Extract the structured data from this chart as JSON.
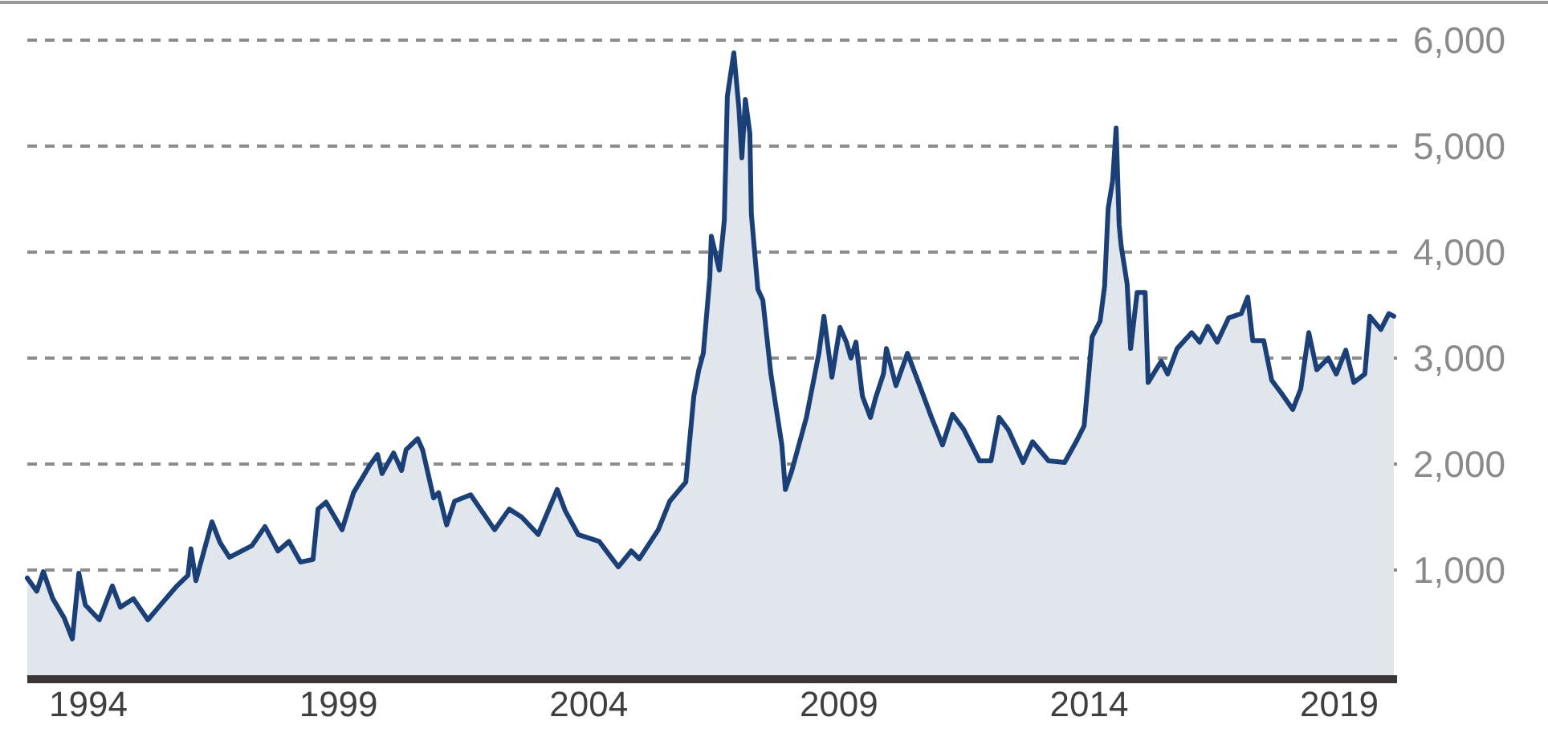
{
  "chart_data": {
    "type": "area",
    "color": "#1b4077",
    "x": [
      1992.78,
      1992.97,
      1993.1,
      1993.29,
      1993.52,
      1993.68,
      1993.81,
      1993.94,
      1994.22,
      1994.48,
      1994.64,
      1994.9,
      1995.19,
      1995.44,
      1995.77,
      1995.99,
      1996.05,
      1996.15,
      1996.34,
      1996.47,
      1996.63,
      1996.82,
      1997.27,
      1997.53,
      1997.79,
      1998.01,
      1998.24,
      1998.49,
      1998.59,
      1998.75,
      1999.07,
      1999.3,
      1999.62,
      1999.78,
      1999.87,
      2000.1,
      2000.26,
      2000.35,
      2000.58,
      2000.68,
      2000.9,
      2001.0,
      2001.16,
      2001.32,
      2001.64,
      2002.12,
      2002.41,
      2002.66,
      2002.99,
      2003.37,
      2003.53,
      2003.79,
      2004.21,
      2004.59,
      2004.85,
      2005.01,
      2005.39,
      2005.62,
      2005.94,
      2006.1,
      2006.2,
      2006.29,
      2006.42,
      2006.45,
      2006.61,
      2006.71,
      2006.77,
      2006.9,
      2007.0,
      2007.06,
      2007.13,
      2007.22,
      2007.25,
      2007.38,
      2007.48,
      2007.64,
      2007.86,
      2007.93,
      2008.06,
      2008.35,
      2008.6,
      2008.7,
      2008.86,
      2009.02,
      2009.15,
      2009.24,
      2009.34,
      2009.47,
      2009.63,
      2009.73,
      2009.89,
      2009.95,
      2010.14,
      2010.37,
      2010.59,
      2010.85,
      2011.07,
      2011.27,
      2011.49,
      2011.81,
      2012.04,
      2012.2,
      2012.39,
      2012.68,
      2012.87,
      2013.19,
      2013.51,
      2013.74,
      2013.9,
      2014.06,
      2014.22,
      2014.31,
      2014.38,
      2014.47,
      2014.54,
      2014.6,
      2014.64,
      2014.76,
      2014.83,
      2014.96,
      2015.12,
      2015.18,
      2015.44,
      2015.57,
      2015.76,
      2016.05,
      2016.21,
      2016.37,
      2016.56,
      2016.79,
      2017.04,
      2017.17,
      2017.27,
      2017.49,
      2017.65,
      2017.84,
      2018.07,
      2018.23,
      2018.39,
      2018.55,
      2018.78,
      2018.94,
      2019.13,
      2019.29,
      2019.51,
      2019.61,
      2019.83,
      2019.99,
      2020.09
    ],
    "values": [
      925,
      800,
      985,
      730,
      545,
      350,
      970,
      670,
      530,
      850,
      650,
      730,
      530,
      670,
      850,
      950,
      1200,
      900,
      1230,
      1455,
      1260,
      1120,
      1230,
      1410,
      1180,
      1270,
      1075,
      1100,
      1575,
      1640,
      1380,
      1730,
      1985,
      2090,
      1910,
      2105,
      1940,
      2135,
      2240,
      2135,
      1680,
      1730,
      1425,
      1650,
      1710,
      1380,
      1575,
      1500,
      1335,
      1760,
      1560,
      1335,
      1270,
      1030,
      1180,
      1105,
      1380,
      1650,
      1830,
      2640,
      2890,
      3045,
      3760,
      4150,
      3830,
      4300,
      5470,
      5880,
      5365,
      4890,
      5440,
      5120,
      4360,
      3650,
      3545,
      2850,
      2180,
      1760,
      1940,
      2440,
      3045,
      3395,
      2820,
      3290,
      3150,
      3000,
      3150,
      2640,
      2440,
      2620,
      2850,
      3090,
      2740,
      3045,
      2770,
      2440,
      2180,
      2470,
      2330,
      2030,
      2030,
      2440,
      2320,
      2015,
      2210,
      2030,
      2015,
      2210,
      2360,
      3200,
      3350,
      3680,
      4410,
      4670,
      5170,
      4260,
      4060,
      3700,
      3090,
      3620,
      3620,
      2770,
      2970,
      2850,
      3090,
      3240,
      3150,
      3300,
      3150,
      3380,
      3420,
      3575,
      3165,
      3165,
      2790,
      2670,
      2515,
      2710,
      3240,
      2890,
      3000,
      2850,
      3075,
      2770,
      2850,
      3395,
      3270,
      3420,
      3395
    ],
    "xlim": [
      1992.78,
      2020.09
    ],
    "xticks": [
      1994,
      1999,
      2004,
      2009,
      2014,
      2019
    ],
    "ylim": [
      0,
      6000
    ],
    "yticks": [
      {
        "value": 1000,
        "label": "1,000"
      },
      {
        "value": 2000,
        "label": "2,000"
      },
      {
        "value": 3000,
        "label": "3,000"
      },
      {
        "value": 4000,
        "label": "4,000"
      },
      {
        "value": 5000,
        "label": "5,000"
      },
      {
        "value": 6000,
        "label": "6,000"
      }
    ],
    "grid": "y",
    "line_style": "solid"
  }
}
